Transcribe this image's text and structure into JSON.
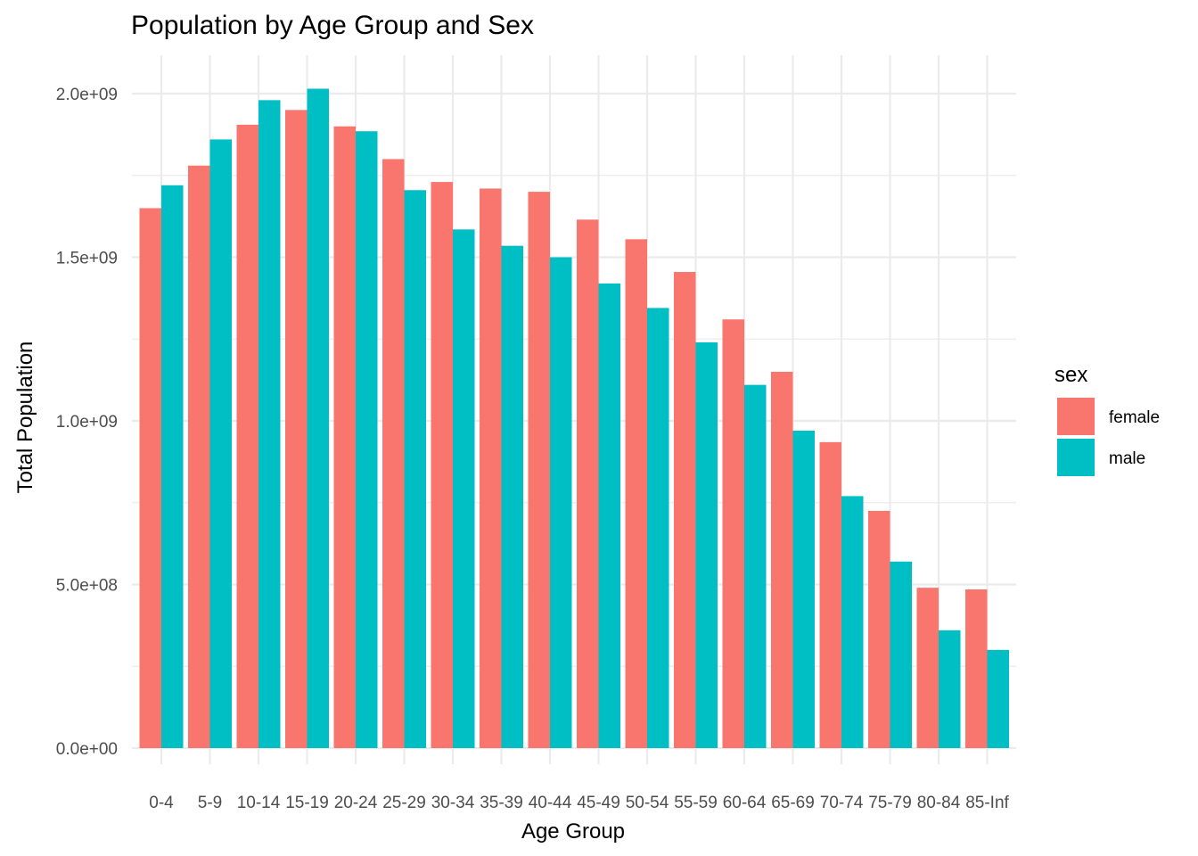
{
  "chart_data": {
    "type": "bar",
    "title": "Population by Age Group and Sex",
    "xlabel": "Age Group",
    "ylabel": "Total Population",
    "categories": [
      "0-4",
      "5-9",
      "10-14",
      "15-19",
      "20-24",
      "25-29",
      "30-34",
      "35-39",
      "40-44",
      "45-49",
      "50-54",
      "55-59",
      "60-64",
      "65-69",
      "70-74",
      "75-79",
      "80-84",
      "85-Inf"
    ],
    "series": [
      {
        "name": "female",
        "color": "#F8766D",
        "values": [
          1650000000,
          1780000000,
          1905000000,
          1950000000,
          1900000000,
          1800000000,
          1730000000,
          1710000000,
          1700000000,
          1615000000,
          1555000000,
          1455000000,
          1310000000,
          1150000000,
          935000000,
          725000000,
          490000000,
          485000000
        ]
      },
      {
        "name": "male",
        "color": "#00BFC4",
        "values": [
          1720000000,
          1860000000,
          1980000000,
          2015000000,
          1885000000,
          1705000000,
          1585000000,
          1535000000,
          1500000000,
          1420000000,
          1345000000,
          1240000000,
          1110000000,
          970000000,
          770000000,
          570000000,
          360000000,
          300000000
        ]
      }
    ],
    "ylim": [
      0,
      2000000000
    ],
    "yticks": [
      {
        "value": 0,
        "label": "0.0e+00"
      },
      {
        "value": 500000000,
        "label": "5.0e+08"
      },
      {
        "value": 1000000000,
        "label": "1.0e+09"
      },
      {
        "value": 1500000000,
        "label": "1.5e+09"
      },
      {
        "value": 2000000000,
        "label": "2.0e+09"
      }
    ],
    "legend": {
      "title": "sex",
      "position": "right"
    },
    "grid": true
  }
}
